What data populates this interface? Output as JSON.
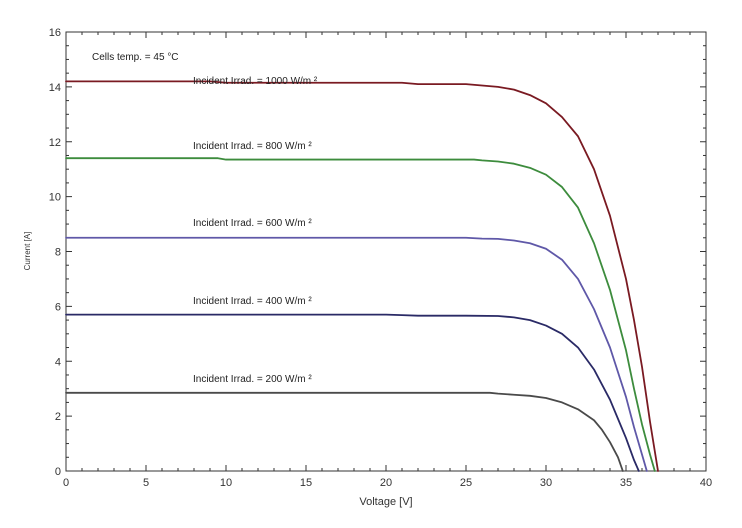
{
  "chart_data": {
    "type": "line",
    "title": "",
    "xlabel": "Voltage  [V]",
    "ylabel": "Current   [A]",
    "xlim": [
      0,
      40
    ],
    "ylim": [
      0,
      16
    ],
    "xticks": [
      0,
      5,
      10,
      15,
      20,
      25,
      30,
      35,
      40
    ],
    "yticks": [
      0,
      2,
      4,
      6,
      8,
      10,
      12,
      14,
      16
    ],
    "x_minor_step": 1,
    "y_minor_step": 0.5,
    "grid": false,
    "annotation": "Cells temp. = 45  °C",
    "series": [
      {
        "name": "Incident Irrad. = 1000 W/m ²",
        "color": "#7a1a22",
        "points": [
          [
            0,
            14.2
          ],
          [
            9,
            14.2
          ],
          [
            10,
            14.15
          ],
          [
            15,
            14.15
          ],
          [
            21,
            14.15
          ],
          [
            22,
            14.1
          ],
          [
            25,
            14.1
          ],
          [
            26,
            14.05
          ],
          [
            27,
            14.0
          ],
          [
            28,
            13.9
          ],
          [
            29,
            13.7
          ],
          [
            30,
            13.4
          ],
          [
            31,
            12.9
          ],
          [
            32,
            12.2
          ],
          [
            33,
            11.0
          ],
          [
            34,
            9.3
          ],
          [
            35,
            7.0
          ],
          [
            35.5,
            5.5
          ],
          [
            36,
            3.8
          ],
          [
            36.5,
            1.8
          ],
          [
            37,
            0
          ]
        ]
      },
      {
        "name": "Incident Irrad. = 800 W/m ²",
        "color": "#3d8c3d",
        "points": [
          [
            0,
            11.4
          ],
          [
            9.5,
            11.4
          ],
          [
            10,
            11.35
          ],
          [
            15,
            11.35
          ],
          [
            25.5,
            11.35
          ],
          [
            26,
            11.32
          ],
          [
            27,
            11.28
          ],
          [
            28,
            11.2
          ],
          [
            29,
            11.05
          ],
          [
            30,
            10.8
          ],
          [
            31,
            10.35
          ],
          [
            32,
            9.6
          ],
          [
            33,
            8.3
          ],
          [
            34,
            6.6
          ],
          [
            35,
            4.4
          ],
          [
            35.5,
            3.0
          ],
          [
            36,
            1.7
          ],
          [
            36.5,
            0.6
          ],
          [
            36.8,
            0
          ]
        ]
      },
      {
        "name": "Incident Irrad. = 600 W/m ²",
        "color": "#5f58a8",
        "points": [
          [
            0,
            8.5
          ],
          [
            25,
            8.5
          ],
          [
            26,
            8.47
          ],
          [
            27,
            8.46
          ],
          [
            28,
            8.4
          ],
          [
            29,
            8.3
          ],
          [
            30,
            8.1
          ],
          [
            31,
            7.7
          ],
          [
            32,
            7.0
          ],
          [
            33,
            5.9
          ],
          [
            34,
            4.5
          ],
          [
            35,
            2.7
          ],
          [
            35.5,
            1.6
          ],
          [
            36,
            0.6
          ],
          [
            36.3,
            0
          ]
        ]
      },
      {
        "name": "Incident Irrad. = 400 W/m ²",
        "color": "#2a2a66",
        "points": [
          [
            0,
            5.7
          ],
          [
            19,
            5.7
          ],
          [
            20,
            5.7
          ],
          [
            21,
            5.68
          ],
          [
            22,
            5.66
          ],
          [
            25,
            5.66
          ],
          [
            27,
            5.65
          ],
          [
            28,
            5.6
          ],
          [
            29,
            5.5
          ],
          [
            30,
            5.3
          ],
          [
            31,
            5.0
          ],
          [
            32,
            4.5
          ],
          [
            33,
            3.7
          ],
          [
            34,
            2.6
          ],
          [
            34.5,
            1.9
          ],
          [
            35,
            1.2
          ],
          [
            35.5,
            0.4
          ],
          [
            35.8,
            0
          ]
        ]
      },
      {
        "name": "Incident Irrad. = 200 W/m ²",
        "color": "#4a4a4a",
        "points": [
          [
            0,
            2.85
          ],
          [
            26.5,
            2.85
          ],
          [
            27,
            2.82
          ],
          [
            28,
            2.78
          ],
          [
            29,
            2.74
          ],
          [
            30,
            2.66
          ],
          [
            31,
            2.5
          ],
          [
            32,
            2.25
          ],
          [
            33,
            1.85
          ],
          [
            33.5,
            1.5
          ],
          [
            34,
            1.05
          ],
          [
            34.5,
            0.5
          ],
          [
            34.8,
            0
          ]
        ]
      }
    ]
  },
  "labels": {
    "irr_1000": "Incident Irrad. = 1000 W/m ²",
    "irr_800": "Incident Irrad. = 800 W/m ²",
    "irr_600": "Incident Irrad. = 600 W/m ²",
    "irr_400": "Incident Irrad. = 400 W/m ²",
    "irr_200": "Incident Irrad. = 200 W/m ²"
  }
}
